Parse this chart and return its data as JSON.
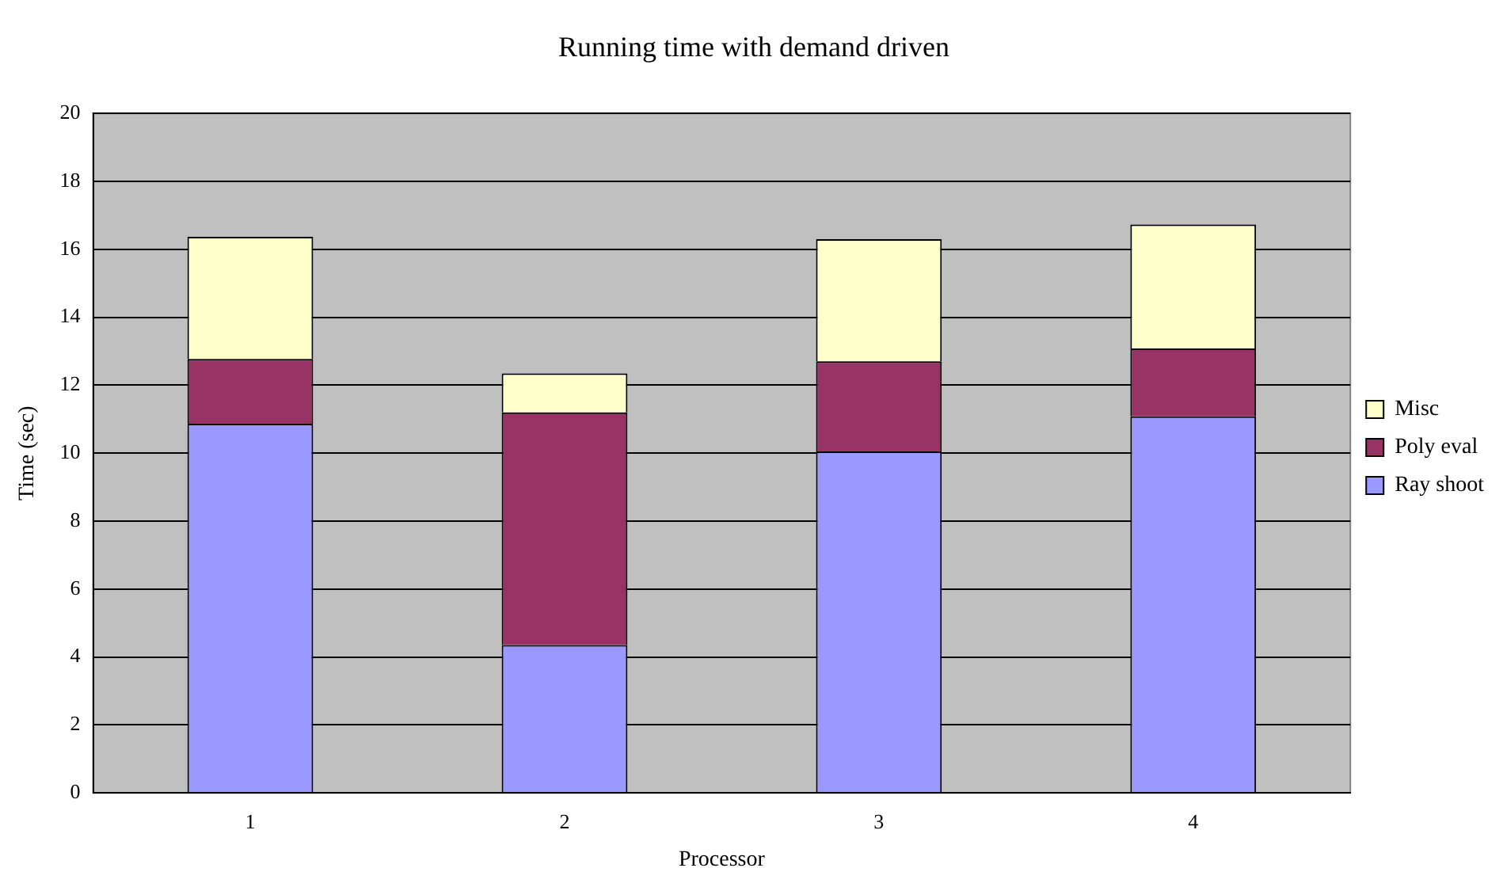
{
  "chart_data": {
    "type": "bar",
    "title": "Running time with demand driven",
    "xlabel": "Processor",
    "ylabel": "Time (sec)",
    "categories": [
      "1",
      "2",
      "3",
      "4"
    ],
    "series": [
      {
        "name": "Ray shoot",
        "color": "#9999ff",
        "values": [
          10.87,
          4.35,
          10.05,
          11.08
        ]
      },
      {
        "name": "Poly eval",
        "color": "#993366",
        "values": [
          1.9,
          6.85,
          2.65,
          2.0
        ]
      },
      {
        "name": "Misc",
        "color": "#ffffcc",
        "values": [
          3.6,
          1.15,
          3.6,
          3.65
        ]
      }
    ],
    "stacked": true,
    "ylim": [
      0,
      20
    ],
    "yticks": [
      0,
      2,
      4,
      6,
      8,
      10,
      12,
      14,
      16,
      18,
      20
    ],
    "grid": "y",
    "legend": "right"
  }
}
